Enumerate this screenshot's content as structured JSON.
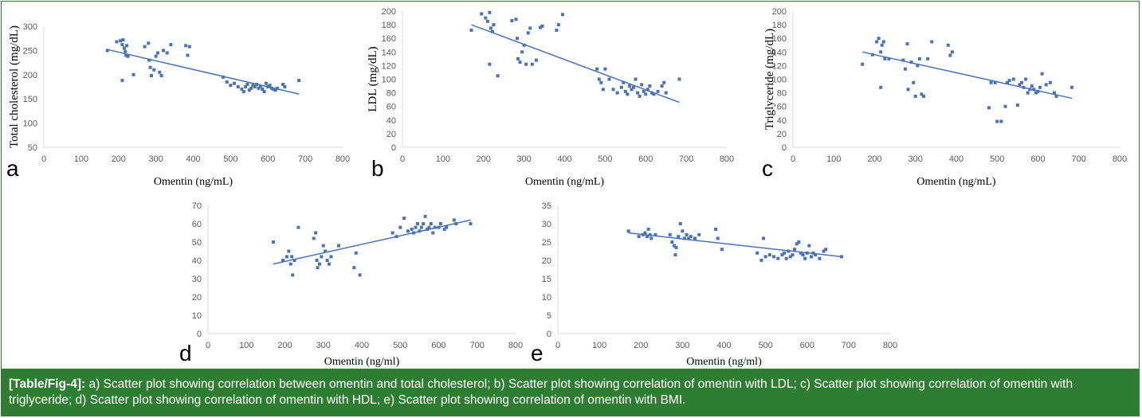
{
  "caption": {
    "tag": "[Table/Fig-4]:",
    "text": " a) Scatter plot showing correlation between omentin and total cholesterol; b) Scatter plot showing correlation of omentin with LDL; c) Scatter plot showing correlation of omentin with triglyceride; d) Scatter plot showing correlation of omentin with HDL; e) Scatter plot showing correlation of omentin with BMI."
  },
  "colors": {
    "points": "#4a72b8",
    "trend": "#4a72b8",
    "axis": "#d9d9d9",
    "caption_bg": "#2e7d32"
  },
  "chart_data": [
    {
      "id": "a",
      "panel_label": "a",
      "type": "scatter",
      "xlabel": "Omentin (ng/mL)",
      "ylabel": "Total cholesterol (mg/dL)",
      "xlim": [
        0,
        800
      ],
      "ylim": [
        50,
        300
      ],
      "xticks": [
        0,
        100,
        200,
        300,
        400,
        500,
        600,
        700,
        800
      ],
      "yticks": [
        50,
        100,
        150,
        200,
        250,
        300
      ],
      "trendline": [
        [
          170,
          252
        ],
        [
          683,
          160
        ]
      ],
      "points": [
        [
          170,
          250
        ],
        [
          195,
          268
        ],
        [
          205,
          270
        ],
        [
          210,
          262
        ],
        [
          212,
          272
        ],
        [
          215,
          255
        ],
        [
          218,
          248
        ],
        [
          220,
          240
        ],
        [
          222,
          260
        ],
        [
          225,
          238
        ],
        [
          210,
          188
        ],
        [
          240,
          200
        ],
        [
          270,
          258
        ],
        [
          280,
          265
        ],
        [
          282,
          230
        ],
        [
          285,
          215
        ],
        [
          288,
          198
        ],
        [
          295,
          210
        ],
        [
          300,
          238
        ],
        [
          305,
          245
        ],
        [
          310,
          205
        ],
        [
          315,
          198
        ],
        [
          320,
          250
        ],
        [
          330,
          245
        ],
        [
          340,
          262
        ],
        [
          380,
          260
        ],
        [
          385,
          240
        ],
        [
          390,
          258
        ],
        [
          480,
          195
        ],
        [
          490,
          185
        ],
        [
          500,
          178
        ],
        [
          510,
          182
        ],
        [
          520,
          175
        ],
        [
          530,
          170
        ],
        [
          535,
          165
        ],
        [
          540,
          175
        ],
        [
          545,
          180
        ],
        [
          550,
          168
        ],
        [
          555,
          172
        ],
        [
          560,
          178
        ],
        [
          565,
          175
        ],
        [
          570,
          180
        ],
        [
          575,
          172
        ],
        [
          580,
          176
        ],
        [
          585,
          170
        ],
        [
          590,
          165
        ],
        [
          595,
          182
        ],
        [
          600,
          175
        ],
        [
          605,
          178
        ],
        [
          610,
          172
        ],
        [
          615,
          170
        ],
        [
          620,
          168
        ],
        [
          625,
          172
        ],
        [
          640,
          180
        ],
        [
          645,
          175
        ],
        [
          683,
          188
        ]
      ]
    },
    {
      "id": "b",
      "panel_label": "b",
      "type": "scatter",
      "xlabel": "Omentin (ng/mL)",
      "ylabel": "LDL (mg/dL)",
      "xlim": [
        0,
        800
      ],
      "ylim": [
        0,
        200
      ],
      "xticks": [
        0,
        100,
        200,
        300,
        400,
        500,
        600,
        700,
        800
      ],
      "yticks": [
        0,
        20,
        40,
        60,
        80,
        100,
        120,
        140,
        160,
        180,
        200
      ],
      "trendline": [
        [
          170,
          180
        ],
        [
          683,
          66
        ]
      ],
      "points": [
        [
          170,
          172
        ],
        [
          195,
          196
        ],
        [
          205,
          190
        ],
        [
          210,
          185
        ],
        [
          215,
          198
        ],
        [
          218,
          175
        ],
        [
          222,
          170
        ],
        [
          225,
          180
        ],
        [
          215,
          122
        ],
        [
          235,
          105
        ],
        [
          270,
          186
        ],
        [
          280,
          188
        ],
        [
          283,
          160
        ],
        [
          285,
          130
        ],
        [
          290,
          125
        ],
        [
          295,
          140
        ],
        [
          300,
          150
        ],
        [
          305,
          122
        ],
        [
          310,
          168
        ],
        [
          315,
          175
        ],
        [
          320,
          122
        ],
        [
          330,
          128
        ],
        [
          340,
          176
        ],
        [
          345,
          178
        ],
        [
          380,
          172
        ],
        [
          385,
          180
        ],
        [
          395,
          195
        ],
        [
          480,
          115
        ],
        [
          485,
          100
        ],
        [
          490,
          95
        ],
        [
          495,
          85
        ],
        [
          500,
          115
        ],
        [
          510,
          100
        ],
        [
          520,
          85
        ],
        [
          530,
          80
        ],
        [
          540,
          88
        ],
        [
          545,
          95
        ],
        [
          550,
          82
        ],
        [
          555,
          78
        ],
        [
          560,
          90
        ],
        [
          565,
          85
        ],
        [
          570,
          88
        ],
        [
          575,
          100
        ],
        [
          580,
          80
        ],
        [
          585,
          75
        ],
        [
          590,
          92
        ],
        [
          595,
          82
        ],
        [
          600,
          78
        ],
        [
          605,
          85
        ],
        [
          610,
          90
        ],
        [
          615,
          80
        ],
        [
          620,
          78
        ],
        [
          630,
          82
        ],
        [
          640,
          90
        ],
        [
          645,
          95
        ],
        [
          650,
          80
        ],
        [
          683,
          100
        ]
      ]
    },
    {
      "id": "c",
      "panel_label": "c",
      "type": "scatter",
      "xlabel": "Omentin (ng/mL)",
      "ylabel": "Triglyceride (mg/dL)",
      "xlim": [
        0,
        800
      ],
      "ylim": [
        0,
        200
      ],
      "xticks": [
        0,
        100,
        200,
        300,
        400,
        500,
        600,
        700,
        800
      ],
      "yticks": [
        0,
        20,
        40,
        60,
        80,
        100,
        120,
        140,
        160,
        180,
        200
      ],
      "trendline": [
        [
          170,
          140
        ],
        [
          683,
          72
        ]
      ],
      "points": [
        [
          170,
          122
        ],
        [
          195,
          136
        ],
        [
          205,
          155
        ],
        [
          210,
          160
        ],
        [
          215,
          140
        ],
        [
          218,
          150
        ],
        [
          222,
          155
        ],
        [
          225,
          130
        ],
        [
          215,
          88
        ],
        [
          235,
          130
        ],
        [
          270,
          128
        ],
        [
          275,
          115
        ],
        [
          280,
          152
        ],
        [
          282,
          85
        ],
        [
          290,
          125
        ],
        [
          295,
          95
        ],
        [
          300,
          75
        ],
        [
          305,
          120
        ],
        [
          310,
          130
        ],
        [
          315,
          78
        ],
        [
          320,
          75
        ],
        [
          330,
          130
        ],
        [
          340,
          155
        ],
        [
          380,
          150
        ],
        [
          385,
          135
        ],
        [
          390,
          140
        ],
        [
          480,
          58
        ],
        [
          485,
          95
        ],
        [
          495,
          95
        ],
        [
          500,
          38
        ],
        [
          510,
          38
        ],
        [
          520,
          60
        ],
        [
          525,
          95
        ],
        [
          530,
          98
        ],
        [
          540,
          100
        ],
        [
          550,
          62
        ],
        [
          555,
          92
        ],
        [
          560,
          95
        ],
        [
          565,
          88
        ],
        [
          570,
          100
        ],
        [
          575,
          80
        ],
        [
          580,
          85
        ],
        [
          585,
          90
        ],
        [
          590,
          85
        ],
        [
          595,
          80
        ],
        [
          600,
          82
        ],
        [
          605,
          88
        ],
        [
          610,
          108
        ],
        [
          620,
          92
        ],
        [
          630,
          95
        ],
        [
          640,
          80
        ],
        [
          645,
          75
        ],
        [
          683,
          88
        ]
      ]
    },
    {
      "id": "d",
      "panel_label": "d",
      "type": "scatter",
      "xlabel": "Omentin (ng/ml)",
      "ylabel": "",
      "xlim": [
        0,
        800
      ],
      "ylim": [
        0,
        70
      ],
      "xticks": [
        0,
        100,
        200,
        300,
        400,
        500,
        600,
        700,
        800
      ],
      "yticks": [
        0,
        10,
        20,
        30,
        40,
        50,
        60,
        70
      ],
      "trendline": [
        [
          170,
          38
        ],
        [
          683,
          62
        ]
      ],
      "points": [
        [
          170,
          50
        ],
        [
          195,
          40
        ],
        [
          205,
          42
        ],
        [
          210,
          45
        ],
        [
          215,
          38
        ],
        [
          218,
          42
        ],
        [
          220,
          32
        ],
        [
          225,
          40
        ],
        [
          235,
          58
        ],
        [
          275,
          52
        ],
        [
          280,
          55
        ],
        [
          283,
          40
        ],
        [
          285,
          36
        ],
        [
          290,
          38
        ],
        [
          295,
          42
        ],
        [
          300,
          48
        ],
        [
          305,
          45
        ],
        [
          310,
          40
        ],
        [
          315,
          38
        ],
        [
          320,
          42
        ],
        [
          340,
          48
        ],
        [
          380,
          36
        ],
        [
          385,
          44
        ],
        [
          395,
          32
        ],
        [
          480,
          55
        ],
        [
          490,
          53
        ],
        [
          500,
          58
        ],
        [
          510,
          63
        ],
        [
          520,
          56
        ],
        [
          530,
          57
        ],
        [
          535,
          55
        ],
        [
          540,
          58
        ],
        [
          545,
          60
        ],
        [
          550,
          56
        ],
        [
          555,
          58
        ],
        [
          560,
          60
        ],
        [
          565,
          64
        ],
        [
          570,
          57
        ],
        [
          575,
          58
        ],
        [
          580,
          60
        ],
        [
          585,
          55
        ],
        [
          590,
          58
        ],
        [
          600,
          58
        ],
        [
          605,
          60
        ],
        [
          615,
          57
        ],
        [
          620,
          58
        ],
        [
          640,
          62
        ],
        [
          645,
          60
        ],
        [
          683,
          60
        ]
      ]
    },
    {
      "id": "e",
      "panel_label": "e",
      "type": "scatter",
      "xlabel": "Omentin (ng/ml)",
      "ylabel": "",
      "xlim": [
        0,
        800
      ],
      "ylim": [
        0,
        35
      ],
      "xticks": [
        0,
        100,
        200,
        300,
        400,
        500,
        600,
        700,
        800
      ],
      "yticks": [
        0,
        5,
        10,
        15,
        20,
        25,
        30,
        35
      ],
      "trendline": [
        [
          170,
          27.5
        ],
        [
          683,
          21
        ]
      ],
      "points": [
        [
          170,
          28
        ],
        [
          195,
          26.5
        ],
        [
          205,
          27
        ],
        [
          210,
          27.5
        ],
        [
          215,
          26.5
        ],
        [
          218,
          28.5
        ],
        [
          222,
          27
        ],
        [
          225,
          26
        ],
        [
          235,
          27
        ],
        [
          270,
          27
        ],
        [
          275,
          25
        ],
        [
          280,
          24
        ],
        [
          283,
          21.5
        ],
        [
          285,
          23.5
        ],
        [
          290,
          26.5
        ],
        [
          295,
          30
        ],
        [
          300,
          28
        ],
        [
          305,
          26
        ],
        [
          310,
          27
        ],
        [
          315,
          26
        ],
        [
          320,
          26.5
        ],
        [
          330,
          26
        ],
        [
          340,
          27
        ],
        [
          380,
          28.5
        ],
        [
          385,
          26
        ],
        [
          395,
          23
        ],
        [
          480,
          22
        ],
        [
          490,
          20
        ],
        [
          495,
          26
        ],
        [
          500,
          21
        ],
        [
          510,
          21.5
        ],
        [
          520,
          21
        ],
        [
          530,
          20.5
        ],
        [
          540,
          21.5
        ],
        [
          545,
          22
        ],
        [
          550,
          20.5
        ],
        [
          555,
          22.5
        ],
        [
          560,
          21
        ],
        [
          565,
          21.5
        ],
        [
          570,
          23
        ],
        [
          575,
          24.5
        ],
        [
          580,
          25
        ],
        [
          585,
          22
        ],
        [
          590,
          21.5
        ],
        [
          595,
          20.5
        ],
        [
          600,
          22
        ],
        [
          605,
          24
        ],
        [
          610,
          21
        ],
        [
          615,
          22
        ],
        [
          620,
          21.5
        ],
        [
          630,
          20.5
        ],
        [
          640,
          22.5
        ],
        [
          645,
          23
        ],
        [
          683,
          21
        ]
      ]
    }
  ]
}
